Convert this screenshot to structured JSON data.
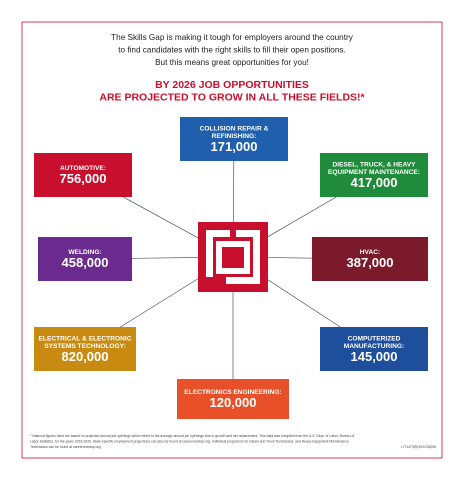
{
  "intro": [
    "The Skills Gap is making it tough for employers around the country",
    "to find candidates with the right skills to fill their open positions.",
    "But this means great opportunities for you!"
  ],
  "headline": [
    "BY 2026 JOB OPPORTUNITIES",
    "ARE PROJECTED TO GROW IN ALL THESE FIELDS!*"
  ],
  "nodes": [
    {
      "label": [
        "COLLISION REPAIR &",
        "REFINISHING:"
      ],
      "value": "171,000"
    },
    {
      "label": [
        "AUTOMOTIVE:"
      ],
      "value": "756,000"
    },
    {
      "label": [
        "DIESEL, TRUCK, & HEAVY",
        "EQUIPMENT MAINTENANCE:"
      ],
      "value": "417,000"
    },
    {
      "label": [
        "WELDING:"
      ],
      "value": "458,000"
    },
    {
      "label": [
        "HVAC:"
      ],
      "value": "387,000"
    },
    {
      "label": [
        "ELECTRICAL & ELECTRONIC",
        "SYSTEMS TECHNOLOGY:"
      ],
      "value": "820,000"
    },
    {
      "label": [
        "COMPUTERIZED",
        "MANUFACTURING:"
      ],
      "value": "145,000"
    },
    {
      "label": [
        "ELECTRONICS ENGINEERING:"
      ],
      "value": "120,000"
    }
  ],
  "footnote": [
    "* National figures cited are based on projected annual job openings which refers to the average annual job openings due to growth and net replacement. This data was compiled from the U.S. Dept. of Labor, Bureau of",
    "Labor Statistics, for the years 2016-2026. State-specific employment projections can also be found at careeronestop.org. Individual projections for Diesel and Truck Technicians, and Heavy Equipment Maintenance",
    "Technicians can be found at careeronestop.org."
  ],
  "code": "LIT1473|R|3/19-03|005"
}
